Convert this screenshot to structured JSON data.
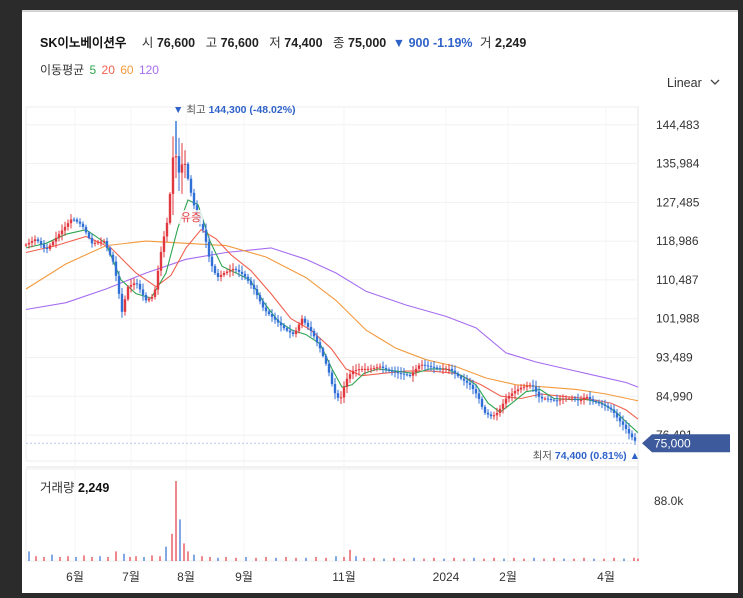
{
  "header": {
    "stock_name": "SK이노베이션우",
    "open_label": "시",
    "open": "76,600",
    "high_label": "고",
    "high": "76,600",
    "low_label": "저",
    "low": "74,400",
    "close_label": "종",
    "close": "75,000",
    "change_arrow": "▼",
    "change": "900",
    "change_pct": "-1.19%",
    "volume_label": "거",
    "volume": "2,249"
  },
  "ma_legend": {
    "label": "이동평균",
    "periods": [
      {
        "period": "5",
        "color": "#2ea44f"
      },
      {
        "period": "20",
        "color": "#f0614f"
      },
      {
        "period": "60",
        "color": "#f39a3d"
      },
      {
        "period": "120",
        "color": "#a66cf0"
      }
    ]
  },
  "scale_dropdown": {
    "label": "Linear",
    "icon": "chevron-down-icon"
  },
  "chart_data": {
    "type": "candlestick",
    "y_ticks": [
      "144,483",
      "135,984",
      "127,485",
      "118,986",
      "110,487",
      "101,988",
      "93,489",
      "84,990",
      "76,491"
    ],
    "ylim": [
      73000,
      147500
    ],
    "x_ticks": [
      "6월",
      "7월",
      "8월",
      "9월",
      "11월",
      "2024",
      "2월",
      "4월"
    ],
    "high_marker": {
      "arrow": "▼",
      "label": "최고",
      "value": "144,300",
      "pct": "(-48.02%)"
    },
    "low_marker": {
      "arrow": "▲",
      "label": "최저",
      "value": "74,400",
      "pct": "(0.81%)"
    },
    "current_price": "75,000",
    "annotation": "유증",
    "close_path": [
      [
        0,
        118000
      ],
      [
        12,
        119500
      ],
      [
        22,
        117000
      ],
      [
        35,
        120500
      ],
      [
        48,
        124000
      ],
      [
        58,
        122500
      ],
      [
        68,
        118500
      ],
      [
        80,
        119000
      ],
      [
        90,
        114000
      ],
      [
        98,
        103500
      ],
      [
        104,
        109000
      ],
      [
        112,
        110000
      ],
      [
        122,
        106000
      ],
      [
        130,
        107000
      ],
      [
        138,
        118000
      ],
      [
        144,
        124000
      ],
      [
        150,
        140000
      ],
      [
        155,
        134000
      ],
      [
        160,
        137000
      ],
      [
        166,
        130500
      ],
      [
        172,
        125000
      ],
      [
        180,
        121000
      ],
      [
        186,
        114500
      ],
      [
        193,
        111000
      ],
      [
        200,
        112000
      ],
      [
        210,
        113000
      ],
      [
        220,
        111500
      ],
      [
        230,
        108500
      ],
      [
        240,
        104000
      ],
      [
        250,
        102000
      ],
      [
        262,
        99500
      ],
      [
        270,
        98500
      ],
      [
        278,
        102000
      ],
      [
        288,
        99000
      ],
      [
        296,
        95500
      ],
      [
        304,
        91000
      ],
      [
        310,
        86000
      ],
      [
        316,
        84000
      ],
      [
        322,
        88500
      ],
      [
        328,
        90500
      ],
      [
        336,
        91000
      ],
      [
        346,
        91000
      ],
      [
        356,
        91500
      ],
      [
        366,
        90500
      ],
      [
        376,
        90000
      ],
      [
        386,
        89500
      ],
      [
        396,
        92000
      ],
      [
        406,
        91500
      ],
      [
        416,
        91000
      ],
      [
        426,
        91000
      ],
      [
        436,
        89000
      ],
      [
        446,
        87500
      ],
      [
        454,
        85000
      ],
      [
        460,
        81500
      ],
      [
        468,
        80500
      ],
      [
        474,
        81500
      ],
      [
        482,
        84500
      ],
      [
        490,
        86000
      ],
      [
        498,
        87000
      ],
      [
        508,
        87500
      ],
      [
        516,
        84500
      ],
      [
        522,
        84500
      ],
      [
        532,
        84000
      ],
      [
        540,
        84500
      ],
      [
        548,
        84500
      ],
      [
        556,
        84000
      ],
      [
        562,
        85000
      ],
      [
        568,
        84000
      ],
      [
        574,
        83500
      ],
      [
        580,
        83000
      ],
      [
        588,
        82000
      ],
      [
        594,
        80000
      ],
      [
        600,
        78500
      ],
      [
        606,
        76500
      ],
      [
        612,
        75000
      ]
    ],
    "ma5_path": [
      [
        0,
        117500
      ],
      [
        20,
        118500
      ],
      [
        40,
        120500
      ],
      [
        60,
        121500
      ],
      [
        80,
        118500
      ],
      [
        95,
        110500
      ],
      [
        110,
        107500
      ],
      [
        125,
        106500
      ],
      [
        140,
        112000
      ],
      [
        152,
        122000
      ],
      [
        162,
        128000
      ],
      [
        172,
        127000
      ],
      [
        184,
        119000
      ],
      [
        196,
        113500
      ],
      [
        210,
        112000
      ],
      [
        224,
        110500
      ],
      [
        238,
        105500
      ],
      [
        252,
        101500
      ],
      [
        266,
        99500
      ],
      [
        280,
        98500
      ],
      [
        294,
        96500
      ],
      [
        306,
        91000
      ],
      [
        316,
        87000
      ],
      [
        326,
        87500
      ],
      [
        338,
        90000
      ],
      [
        352,
        91000
      ],
      [
        370,
        90500
      ],
      [
        388,
        90000
      ],
      [
        404,
        91000
      ],
      [
        420,
        91000
      ],
      [
        436,
        89500
      ],
      [
        450,
        87500
      ],
      [
        462,
        83500
      ],
      [
        474,
        81500
      ],
      [
        486,
        83500
      ],
      [
        500,
        86000
      ],
      [
        514,
        86500
      ],
      [
        528,
        84500
      ],
      [
        544,
        84300
      ],
      [
        560,
        84300
      ],
      [
        576,
        83500
      ],
      [
        590,
        81500
      ],
      [
        602,
        79000
      ],
      [
        612,
        77000
      ]
    ],
    "ma20_path": [
      [
        0,
        116500
      ],
      [
        30,
        118000
      ],
      [
        60,
        120000
      ],
      [
        85,
        117500
      ],
      [
        110,
        112000
      ],
      [
        130,
        109000
      ],
      [
        145,
        111500
      ],
      [
        160,
        117500
      ],
      [
        175,
        121500
      ],
      [
        190,
        119500
      ],
      [
        205,
        116000
      ],
      [
        225,
        112500
      ],
      [
        245,
        107500
      ],
      [
        265,
        102000
      ],
      [
        285,
        99500
      ],
      [
        305,
        95500
      ],
      [
        320,
        91000
      ],
      [
        336,
        89500
      ],
      [
        356,
        90000
      ],
      [
        380,
        90500
      ],
      [
        405,
        90500
      ],
      [
        430,
        90000
      ],
      [
        455,
        87500
      ],
      [
        475,
        85000
      ],
      [
        495,
        84500
      ],
      [
        515,
        85500
      ],
      [
        535,
        85000
      ],
      [
        560,
        84500
      ],
      [
        585,
        83500
      ],
      [
        600,
        82000
      ],
      [
        612,
        80000
      ]
    ],
    "ma60_path": [
      [
        0,
        108500
      ],
      [
        40,
        114000
      ],
      [
        80,
        118000
      ],
      [
        120,
        119000
      ],
      [
        160,
        118500
      ],
      [
        200,
        118000
      ],
      [
        240,
        115500
      ],
      [
        280,
        111000
      ],
      [
        310,
        106000
      ],
      [
        340,
        99500
      ],
      [
        370,
        95500
      ],
      [
        400,
        93000
      ],
      [
        430,
        91500
      ],
      [
        460,
        89000
      ],
      [
        490,
        87500
      ],
      [
        520,
        87000
      ],
      [
        550,
        86500
      ],
      [
        580,
        85500
      ],
      [
        612,
        84000
      ]
    ],
    "ma120_path": [
      [
        0,
        104000
      ],
      [
        40,
        105500
      ],
      [
        80,
        108500
      ],
      [
        120,
        112000
      ],
      [
        160,
        115000
      ],
      [
        200,
        116500
      ],
      [
        245,
        117500
      ],
      [
        280,
        115000
      ],
      [
        310,
        112000
      ],
      [
        340,
        108000
      ],
      [
        380,
        105000
      ],
      [
        420,
        102500
      ],
      [
        450,
        100000
      ],
      [
        480,
        94500
      ],
      [
        510,
        92500
      ],
      [
        540,
        91000
      ],
      [
        570,
        89500
      ],
      [
        600,
        88000
      ],
      [
        612,
        87000
      ]
    ],
    "volume_axis_label": "88.0k",
    "volume_bars": [
      [
        3,
        0.12
      ],
      [
        10,
        0.06
      ],
      [
        18,
        0.05
      ],
      [
        26,
        0.08
      ],
      [
        34,
        0.05
      ],
      [
        42,
        0.06
      ],
      [
        50,
        0.05
      ],
      [
        58,
        0.07
      ],
      [
        66,
        0.05
      ],
      [
        74,
        0.06
      ],
      [
        82,
        0.05
      ],
      [
        90,
        0.12
      ],
      [
        98,
        0.09
      ],
      [
        104,
        0.05
      ],
      [
        110,
        0.06
      ],
      [
        118,
        0.05
      ],
      [
        126,
        0.07
      ],
      [
        134,
        0.06
      ],
      [
        140,
        0.18
      ],
      [
        146,
        0.34
      ],
      [
        150,
        1.0
      ],
      [
        154,
        0.52
      ],
      [
        158,
        0.22
      ],
      [
        162,
        0.12
      ],
      [
        168,
        0.08
      ],
      [
        176,
        0.06
      ],
      [
        184,
        0.05
      ],
      [
        192,
        0.04
      ],
      [
        200,
        0.05
      ],
      [
        210,
        0.04
      ],
      [
        220,
        0.05
      ],
      [
        230,
        0.04
      ],
      [
        240,
        0.05
      ],
      [
        250,
        0.04
      ],
      [
        260,
        0.05
      ],
      [
        270,
        0.04
      ],
      [
        280,
        0.04
      ],
      [
        290,
        0.05
      ],
      [
        300,
        0.04
      ],
      [
        310,
        0.06
      ],
      [
        318,
        0.05
      ],
      [
        324,
        0.14
      ],
      [
        330,
        0.06
      ],
      [
        338,
        0.04
      ],
      [
        348,
        0.04
      ],
      [
        358,
        0.03
      ],
      [
        368,
        0.04
      ],
      [
        378,
        0.03
      ],
      [
        388,
        0.04
      ],
      [
        398,
        0.03
      ],
      [
        408,
        0.04
      ],
      [
        418,
        0.03
      ],
      [
        428,
        0.04
      ],
      [
        438,
        0.03
      ],
      [
        448,
        0.04
      ],
      [
        458,
        0.03
      ],
      [
        468,
        0.04
      ],
      [
        478,
        0.03
      ],
      [
        488,
        0.04
      ],
      [
        498,
        0.03
      ],
      [
        508,
        0.04
      ],
      [
        518,
        0.03
      ],
      [
        528,
        0.04
      ],
      [
        538,
        0.03
      ],
      [
        548,
        0.03
      ],
      [
        558,
        0.04
      ],
      [
        568,
        0.03
      ],
      [
        578,
        0.03
      ],
      [
        588,
        0.04
      ],
      [
        598,
        0.03
      ],
      [
        608,
        0.04
      ],
      [
        612,
        0.03
      ]
    ]
  },
  "volume_panel": {
    "label": "거래량",
    "value": "2,249"
  }
}
